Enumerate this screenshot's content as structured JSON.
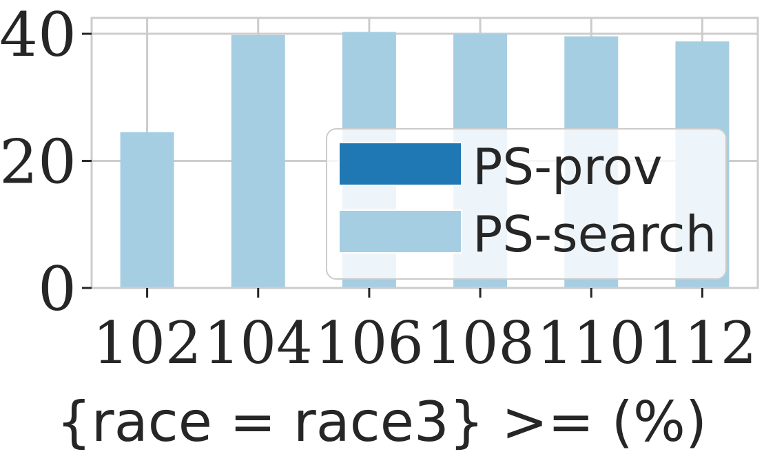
{
  "chart_data": {
    "type": "bar",
    "categories": [
      "102",
      "104",
      "106",
      "108",
      "110",
      "112"
    ],
    "series": [
      {
        "name": "PS-prov",
        "values": [
          0,
          0,
          0,
          0,
          0,
          0
        ],
        "color": "#1f77b4"
      },
      {
        "name": "PS-search",
        "values": [
          24.5,
          39.8,
          40.3,
          40.0,
          39.6,
          38.8
        ],
        "color": "#a6cee3"
      }
    ],
    "xlabel": "{race = race3} >= (%)",
    "ylabel": "",
    "ylim": [
      0,
      42.5
    ],
    "yticks": [
      "0",
      "20",
      "40"
    ],
    "grid": true,
    "legend_position": "lower-right"
  }
}
